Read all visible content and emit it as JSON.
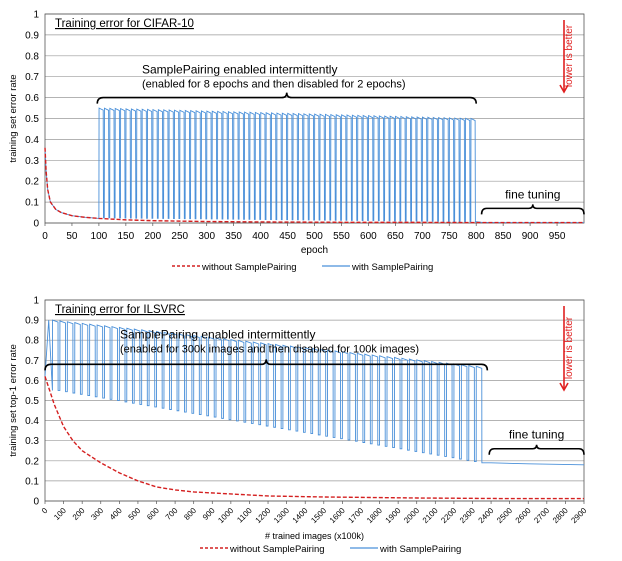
{
  "chart_data": [
    {
      "type": "line",
      "title": "Training error for CIFAR-10",
      "xlabel": "epoch",
      "ylabel": "training set error rate",
      "xlim": [
        0,
        1000
      ],
      "ylim": [
        0,
        1
      ],
      "xticks": [
        0,
        50,
        100,
        150,
        200,
        250,
        300,
        350,
        400,
        450,
        500,
        550,
        600,
        650,
        700,
        750,
        800,
        850,
        900,
        950
      ],
      "yticks": [
        0,
        0.1,
        0.2,
        0.3,
        0.4,
        0.5,
        0.6,
        0.7,
        0.8,
        0.9,
        1
      ],
      "grid": true,
      "legend": "bottom",
      "series": [
        {
          "name": "without SamplePairing",
          "color": "#d42020",
          "style": "dashed",
          "x": [
            0,
            2,
            5,
            10,
            20,
            30,
            50,
            75,
            100,
            150,
            200,
            300,
            400,
            500,
            600,
            700,
            800,
            900,
            1000
          ],
          "values": [
            0.36,
            0.25,
            0.16,
            0.1,
            0.065,
            0.05,
            0.035,
            0.027,
            0.022,
            0.015,
            0.011,
            0.007,
            0.005,
            0.004,
            0.003,
            0.003,
            0.002,
            0.002,
            0.002
          ]
        },
        {
          "name": "with SamplePairing",
          "color": "#4a90d9",
          "style": "solid",
          "intermittent": {
            "start": 100,
            "end": 800,
            "on": 8,
            "off": 2,
            "peak_start": 0.55,
            "peak_end": 0.5,
            "trough_start": 0.025,
            "trough_end": 0.006
          },
          "x": [
            0,
            2,
            5,
            10,
            20,
            30,
            50,
            75,
            100,
            800,
            810,
            850,
            900,
            950,
            1000
          ],
          "values": [
            0.36,
            0.25,
            0.16,
            0.1,
            0.065,
            0.05,
            0.035,
            0.027,
            0.022,
            0.006,
            0.003,
            0.002,
            0.002,
            0.002,
            0.002
          ]
        }
      ],
      "annotations": {
        "bracket_text": [
          "SamplePairing enabled intermittently",
          "(enabled for 8 epochs and then disabled for 2 epochs)"
        ],
        "bracket": {
          "x_from": 97,
          "x_to": 800,
          "y": 0.6
        },
        "fine_tuning": "fine tuning",
        "fine_bracket": {
          "x_from": 810,
          "x_to": 1000,
          "y": 0.07
        },
        "arrow_text": "lower is better"
      }
    },
    {
      "type": "line",
      "title": "Training error for ILSVRC",
      "xlabel": "# trained images (x100k)",
      "ylabel": "training set top-1 error rate",
      "xlim": [
        0,
        2900
      ],
      "ylim": [
        0,
        1
      ],
      "xticks": [
        0,
        100,
        200,
        300,
        400,
        500,
        600,
        700,
        800,
        900,
        1000,
        1100,
        1200,
        1300,
        1400,
        1500,
        1600,
        1700,
        1800,
        1900,
        2000,
        2100,
        2200,
        2300,
        2400,
        2500,
        2600,
        2700,
        2800,
        2900
      ],
      "yticks": [
        0,
        0.1,
        0.2,
        0.3,
        0.4,
        0.5,
        0.6,
        0.7,
        0.8,
        0.9,
        1
      ],
      "grid": true,
      "legend": "bottom",
      "series": [
        {
          "name": "without SamplePairing",
          "color": "#d42020",
          "style": "dashed",
          "x": [
            0,
            25,
            50,
            100,
            150,
            200,
            300,
            400,
            500,
            600,
            700,
            800,
            1000,
            1200,
            1500,
            2000,
            2500,
            2900
          ],
          "values": [
            0.62,
            0.55,
            0.48,
            0.37,
            0.3,
            0.25,
            0.19,
            0.14,
            0.1,
            0.07,
            0.055,
            0.045,
            0.035,
            0.025,
            0.02,
            0.015,
            0.012,
            0.012
          ]
        },
        {
          "name": "with SamplePairing",
          "color": "#4a90d9",
          "style": "solid",
          "intermittent": {
            "start": 40,
            "end": 2360,
            "on": 30,
            "off": 10,
            "peak_start": 0.9,
            "peak_end": 0.67,
            "trough_start": 0.55,
            "trough_end": 0.19
          },
          "x": [
            0,
            20,
            40,
            2360,
            2400,
            2600,
            2900
          ],
          "values": [
            0.62,
            0.9,
            0.55,
            0.19,
            0.19,
            0.185,
            0.18
          ]
        }
      ],
      "annotations": {
        "bracket_text": [
          "SamplePairing enabled intermittently",
          "(enabled for 300k images and then disabled for 100k images)"
        ],
        "bracket": {
          "x_from": 0,
          "x_to": 2380,
          "y": 0.68
        },
        "fine_tuning": "fine tuning",
        "fine_bracket": {
          "x_from": 2390,
          "x_to": 2900,
          "y": 0.26
        },
        "arrow_text": "lower is better"
      }
    }
  ]
}
